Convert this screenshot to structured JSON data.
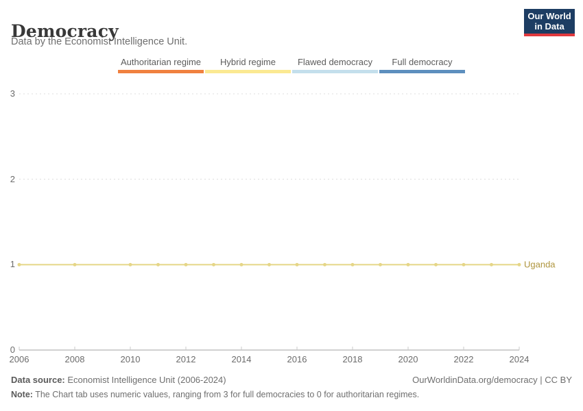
{
  "header": {
    "title": "Democracy",
    "subtitle": "Data by the Economist Intelligence Unit."
  },
  "logo": {
    "line1": "Our World",
    "line2": "in Data",
    "bg_color": "#1d3d63",
    "accent_color": "#e0393e"
  },
  "legend": {
    "items": [
      {
        "label": "Authoritarian regime",
        "color": "#f0813f"
      },
      {
        "label": "Hybrid regime",
        "color": "#fbe992"
      },
      {
        "label": "Flawed democracy",
        "color": "#c4dfec"
      },
      {
        "label": "Full democracy",
        "color": "#5d8fbe"
      }
    ]
  },
  "chart_data": {
    "type": "line",
    "title": "Democracy",
    "xlabel": "",
    "ylabel": "",
    "x": [
      2006,
      2008,
      2010,
      2011,
      2012,
      2013,
      2014,
      2015,
      2016,
      2017,
      2018,
      2019,
      2020,
      2021,
      2022,
      2023,
      2024
    ],
    "series": [
      {
        "name": "Uganda",
        "values": [
          1,
          1,
          1,
          1,
          1,
          1,
          1,
          1,
          1,
          1,
          1,
          1,
          1,
          1,
          1,
          1,
          1
        ],
        "line_color": "#e5d687",
        "label_color": "#af953e"
      }
    ],
    "xlim": [
      2006,
      2024
    ],
    "ylim": [
      0,
      3
    ],
    "xticks": [
      2006,
      2008,
      2010,
      2012,
      2014,
      2016,
      2018,
      2020,
      2022,
      2024
    ],
    "yticks": [
      0,
      1,
      2,
      3
    ],
    "grid": "horizontal dashed at 1,2,3; solid axis at 0",
    "legend_position": "top center",
    "grid_color": "#dcdcdc",
    "axis_color": "#a0a0a0",
    "tick_color": "#c8c8c8"
  },
  "footer": {
    "datasource_label": "Data source:",
    "datasource_text": " Economist Intelligence Unit (2006-2024)",
    "url_text": "OurWorldinData.org/democracy | CC BY",
    "note_label": "Note:",
    "note_text": " The Chart tab uses numeric values, ranging from 3 for full democracies to 0 for authoritarian regimes."
  }
}
